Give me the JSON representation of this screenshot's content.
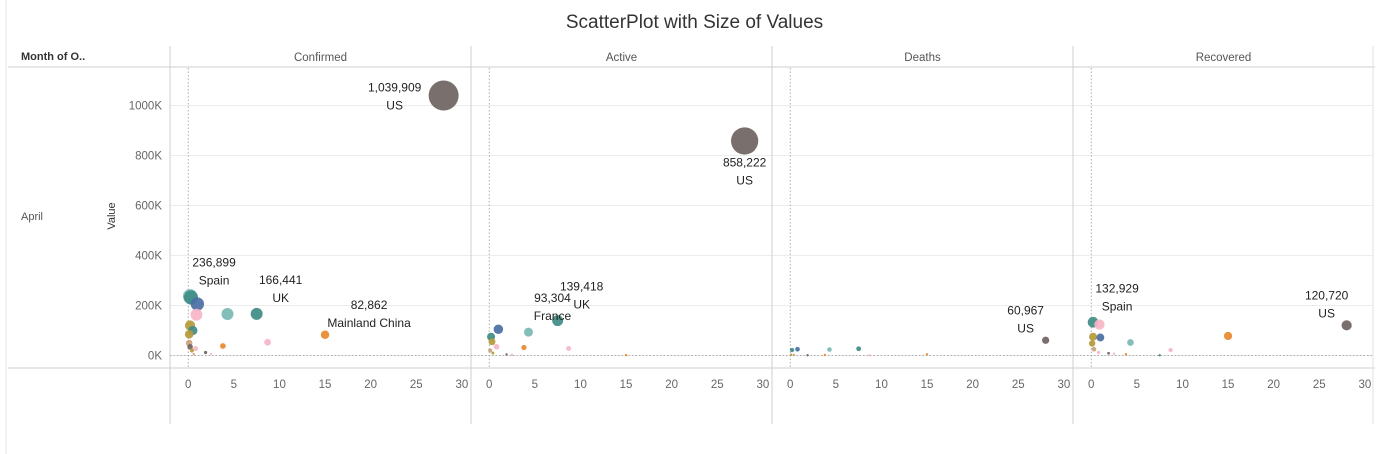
{
  "title": "ScatterPlot with Size of Values",
  "row_header": "Month of O..",
  "row_value": "April",
  "colors": {
    "gray": "#6e6462",
    "teal_light": "#7ab8b3",
    "teal": "#3f8c86",
    "blue": "#4a6fa3",
    "pink": "#f7b5c8",
    "orange": "#e8892e",
    "olive": "#b59a3a",
    "tan": "#c9a37a",
    "grid": "#ececec"
  },
  "chart_data": {
    "type": "scatter",
    "title": "ScatterPlot with Size of Values",
    "ylabel": "Value",
    "xlabel": "",
    "xlim": [
      -2,
      31
    ],
    "ylim": [
      -50000,
      1150000
    ],
    "x_ticks": [
      0,
      5,
      10,
      15,
      20,
      25,
      30
    ],
    "y_ticks": [
      {
        "value": 0,
        "label": "0K"
      },
      {
        "value": 200000,
        "label": "200K"
      },
      {
        "value": 400000,
        "label": "400K"
      },
      {
        "value": 600000,
        "label": "600K"
      },
      {
        "value": 800000,
        "label": "800K"
      },
      {
        "value": 1000000,
        "label": "1000K"
      }
    ],
    "grid": true,
    "size_encodes": "value",
    "panels": [
      {
        "name": "Confirmed",
        "points": [
          {
            "x": 28,
            "y": 1039909,
            "color": "gray"
          },
          {
            "x": 0.2,
            "y": 236899,
            "color": "teal_light"
          },
          {
            "x": 0.3,
            "y": 232000,
            "color": "teal"
          },
          {
            "x": 1,
            "y": 206000,
            "color": "blue"
          },
          {
            "x": 4.3,
            "y": 166000,
            "color": "teal_light"
          },
          {
            "x": 7.5,
            "y": 166441,
            "color": "teal"
          },
          {
            "x": 0.9,
            "y": 163000,
            "color": "pink"
          },
          {
            "x": 0.2,
            "y": 120000,
            "color": "olive"
          },
          {
            "x": 0.5,
            "y": 100000,
            "color": "teal"
          },
          {
            "x": 0.1,
            "y": 85000,
            "color": "olive"
          },
          {
            "x": 15,
            "y": 82862,
            "color": "orange"
          },
          {
            "x": 8.7,
            "y": 53000,
            "color": "pink"
          },
          {
            "x": 0.1,
            "y": 50000,
            "color": "tan"
          },
          {
            "x": 3.8,
            "y": 38000,
            "color": "orange"
          },
          {
            "x": 0.2,
            "y": 35000,
            "color": "gray"
          },
          {
            "x": 0.8,
            "y": 28000,
            "color": "pink"
          },
          {
            "x": 0.4,
            "y": 20000,
            "color": "olive"
          },
          {
            "x": 1.9,
            "y": 12000,
            "color": "gray"
          },
          {
            "x": 2.5,
            "y": 6000,
            "color": "pink"
          },
          {
            "x": 0.6,
            "y": 5000,
            "color": "tan"
          }
        ],
        "labels": [
          {
            "x": 28,
            "y": 1039909,
            "value": "1,039,909",
            "country": "US"
          },
          {
            "x": 0.2,
            "y": 236899,
            "value": "236,899",
            "country": "Spain"
          },
          {
            "x": 7.5,
            "y": 166441,
            "value": "166,441",
            "country": "UK"
          },
          {
            "x": 15,
            "y": 82862,
            "value": "82,862",
            "country": "Mainland China"
          }
        ]
      },
      {
        "name": "Active",
        "points": [
          {
            "x": 28,
            "y": 858222,
            "color": "gray"
          },
          {
            "x": 7.5,
            "y": 139418,
            "color": "teal"
          },
          {
            "x": 1,
            "y": 105000,
            "color": "blue"
          },
          {
            "x": 4.3,
            "y": 93304,
            "color": "teal_light"
          },
          {
            "x": 0.2,
            "y": 75000,
            "color": "teal"
          },
          {
            "x": 0.3,
            "y": 55000,
            "color": "olive"
          },
          {
            "x": 0.8,
            "y": 35000,
            "color": "pink"
          },
          {
            "x": 3.8,
            "y": 32000,
            "color": "orange"
          },
          {
            "x": 8.7,
            "y": 28000,
            "color": "pink"
          },
          {
            "x": 0.1,
            "y": 20000,
            "color": "tan"
          },
          {
            "x": 0.4,
            "y": 10000,
            "color": "olive"
          },
          {
            "x": 1.9,
            "y": 4000,
            "color": "gray"
          },
          {
            "x": 2.5,
            "y": 3000,
            "color": "pink"
          },
          {
            "x": 15,
            "y": 1500,
            "color": "orange"
          }
        ],
        "labels": [
          {
            "x": 28,
            "y": 858222,
            "value": "858,222",
            "country": "US"
          },
          {
            "x": 4.3,
            "y": 93304,
            "value": "93,304",
            "country": "France"
          },
          {
            "x": 7.5,
            "y": 139418,
            "value": "139,418",
            "country": "UK"
          }
        ]
      },
      {
        "name": "Deaths",
        "points": [
          {
            "x": 28,
            "y": 60967,
            "color": "gray"
          },
          {
            "x": 7.5,
            "y": 27000,
            "color": "teal"
          },
          {
            "x": 0.8,
            "y": 25000,
            "color": "blue"
          },
          {
            "x": 0.2,
            "y": 22000,
            "color": "teal"
          },
          {
            "x": 4.3,
            "y": 24000,
            "color": "teal_light"
          },
          {
            "x": 0.1,
            "y": 3000,
            "color": "olive"
          },
          {
            "x": 0.4,
            "y": 2000,
            "color": "tan"
          },
          {
            "x": 1.9,
            "y": 1000,
            "color": "gray"
          },
          {
            "x": 3.8,
            "y": 2000,
            "color": "orange"
          },
          {
            "x": 8.7,
            "y": 1000,
            "color": "pink"
          },
          {
            "x": 15,
            "y": 4600,
            "color": "orange"
          }
        ],
        "labels": [
          {
            "x": 28,
            "y": 60967,
            "value": "60,967",
            "country": "US"
          }
        ]
      },
      {
        "name": "Recovered",
        "points": [
          {
            "x": 28,
            "y": 120720,
            "color": "gray"
          },
          {
            "x": 0.2,
            "y": 132929,
            "color": "teal"
          },
          {
            "x": 0.9,
            "y": 124000,
            "color": "pink"
          },
          {
            "x": 15,
            "y": 78000,
            "color": "orange"
          },
          {
            "x": 0.2,
            "y": 75000,
            "color": "olive"
          },
          {
            "x": 1,
            "y": 72000,
            "color": "blue"
          },
          {
            "x": 4.3,
            "y": 52000,
            "color": "teal_light"
          },
          {
            "x": 0.1,
            "y": 48000,
            "color": "olive"
          },
          {
            "x": 0.3,
            "y": 25000,
            "color": "tan"
          },
          {
            "x": 8.7,
            "y": 22000,
            "color": "pink"
          },
          {
            "x": 0.8,
            "y": 12000,
            "color": "pink"
          },
          {
            "x": 1.9,
            "y": 9000,
            "color": "gray"
          },
          {
            "x": 2.5,
            "y": 7000,
            "color": "pink"
          },
          {
            "x": 3.8,
            "y": 5000,
            "color": "orange"
          },
          {
            "x": 7.5,
            "y": 1000,
            "color": "teal"
          }
        ],
        "labels": [
          {
            "x": 0.2,
            "y": 132929,
            "value": "132,929",
            "country": "Spain"
          },
          {
            "x": 28,
            "y": 120720,
            "value": "120,720",
            "country": "US"
          }
        ]
      }
    ]
  }
}
